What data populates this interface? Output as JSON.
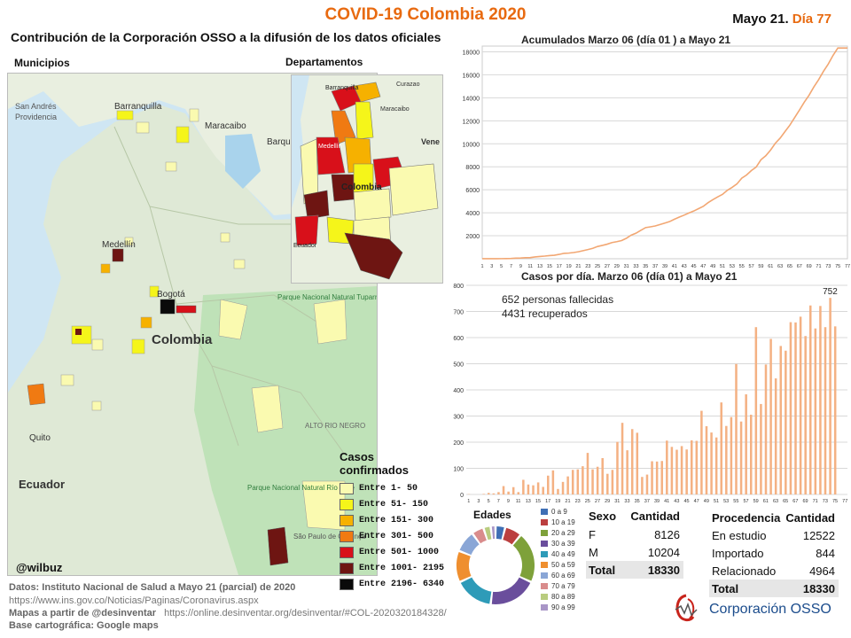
{
  "header": {
    "title": "COVID-19 Colombia 2020",
    "date_prefix": "Mayo 21.",
    "date_day": "Día 77",
    "subtitle": "Contribución de la Corporación OSSO a la difusión de los datos oficiales"
  },
  "maps": {
    "municipios_label": "Municipios",
    "departamentos_label": "Departamentos",
    "municipios_places": [
      "Barranquilla",
      "Maracaibo",
      "Medellín",
      "Bogotá",
      "Colombia",
      "Quito",
      "Ecuador",
      "San Andrés",
      "Providencia",
      "Barqu",
      "Parque Nacional Natural Tuparro",
      "ALTO RIO NEGRO",
      "Parque Nacional Natural Río Puré",
      "São Paulo de Olivença"
    ],
    "departamentos_places": [
      "Barranquilla",
      "Curazao",
      "Maracaibo",
      "Vene",
      "Medellín",
      "Colombia",
      "Ecuador"
    ],
    "credit": "@wilbuz"
  },
  "legend": {
    "title_line1": "Casos",
    "title_line2": "confirmados",
    "items": [
      {
        "label": "Entre 1- 50",
        "color": "#fafab0"
      },
      {
        "label": "Entre 51- 150",
        "color": "#f5f51a"
      },
      {
        "label": "Entre 151- 300",
        "color": "#f6b100"
      },
      {
        "label": "Entre 301- 500",
        "color": "#f07a12"
      },
      {
        "label": "Entre 501- 1000",
        "color": "#d8101a"
      },
      {
        "label": "Entre 1001- 2195",
        "color": "#6e1512"
      },
      {
        "label": "Entre 2196- 6340",
        "color": "#0a0a0a"
      }
    ]
  },
  "cumulative": {
    "title": "Acumulados  Marzo 06 (día 01 ) a Mayo 21",
    "chart_data": {
      "type": "line",
      "x_start": 1,
      "x_end": 77,
      "ylim": [
        0,
        18500
      ],
      "yticks": [
        2000,
        4000,
        6000,
        8000,
        10000,
        12000,
        14000,
        16000,
        18000
      ],
      "color": "#f2a773",
      "values": [
        1,
        1,
        1,
        3,
        9,
        13,
        22,
        54,
        65,
        93,
        102,
        158,
        196,
        231,
        277,
        306,
        378,
        470,
        491,
        539,
        608,
        702,
        798,
        906,
        1065,
        1161,
        1267,
        1406,
        1485,
        1579,
        1780,
        2054,
        2223,
        2473,
        2709,
        2776,
        2852,
        2979,
        3105,
        3233,
        3439,
        3621,
        3792,
        3977,
        4149,
        4356,
        4561,
        4881,
        5142,
        5379,
        5597,
        5949,
        6211,
        6507,
        7006,
        7285,
        7668,
        7973,
        8613,
        8959,
        9456,
        10051,
        10495,
        11063,
        11613,
        12272,
        12930,
        13610,
        14216,
        14939,
        15574,
        16295,
        16935,
        17687,
        18330,
        18330,
        18330
      ],
      "grid": true
    }
  },
  "daily": {
    "title": "Casos por día. Marzo 06 (día 01) a Mayo 21",
    "annotation_fallecidas": "652 personas fallecidas",
    "annotation_recuperados": "4431 recuperados",
    "peak_label": "752",
    "chart_data": {
      "type": "bar",
      "x_start": 1,
      "x_end": 77,
      "ylim": [
        0,
        800
      ],
      "yticks": [
        0,
        100,
        200,
        300,
        400,
        500,
        600,
        700,
        800
      ],
      "color": "#f4b183",
      "values": [
        1,
        0,
        0,
        2,
        6,
        4,
        9,
        32,
        11,
        28,
        9,
        56,
        38,
        35,
        46,
        29,
        72,
        92,
        21,
        48,
        69,
        94,
        96,
        108,
        159,
        96,
        106,
        139,
        79,
        94,
        201,
        274,
        169,
        250,
        236,
        67,
        76,
        127,
        126,
        128,
        206,
        182,
        171,
        185,
        172,
        207,
        205,
        320,
        261,
        237,
        218,
        352,
        262,
        296,
        499,
        279,
        383,
        305,
        640,
        346,
        497,
        595,
        444,
        568,
        550,
        659,
        658,
        680,
        606,
        723,
        635,
        721,
        640,
        752,
        643,
        0,
        0
      ],
      "grid": true
    }
  },
  "ages": {
    "title": "Edades",
    "chart_data": {
      "type": "pie",
      "labels": [
        "0 a 9",
        "10 a 19",
        "20 a 29",
        "30 a 39",
        "40 a 49",
        "50 a 59",
        "60 a 69",
        "70 a 79",
        "80 a 89",
        "90 a 99"
      ],
      "values": [
        4,
        7,
        21,
        20,
        16,
        13,
        9,
        5,
        3,
        2
      ],
      "colors": [
        "#3f6fb5",
        "#bb3f3f",
        "#7ea13a",
        "#6a4e9c",
        "#2e9bb8",
        "#ef8f2f",
        "#8aa6d6",
        "#d98c8c",
        "#b9cc7f",
        "#a996c7"
      ]
    }
  },
  "sexo_table": {
    "headers": [
      "Sexo",
      "Cantidad"
    ],
    "rows": [
      [
        "F",
        "8126"
      ],
      [
        "M",
        "10204"
      ]
    ],
    "total_label": "Total",
    "total_value": "18330"
  },
  "procedencia_table": {
    "headers": [
      "Procedencia",
      "Cantidad"
    ],
    "rows": [
      [
        "En estudio",
        "12522"
      ],
      [
        "Importado",
        "844"
      ],
      [
        "Relacionado",
        "4964"
      ]
    ],
    "total_label": "Total",
    "total_value": "18330"
  },
  "footer": {
    "datos_label": "Datos: Instituto Nacional de Salud a Mayo 21 (parcial) de 2020",
    "datos_url": "https://www.ins.gov.co/Noticias/Paginas/Coronavirus.aspx",
    "mapas_label": "Mapas a partir de @desinventar",
    "mapas_url": "https://online.desinventar.org/desinventar/#COL-2020320184328/",
    "base_label": "Base cartográfica: Google  maps"
  },
  "logo": {
    "name": "Corporación OSSO"
  }
}
